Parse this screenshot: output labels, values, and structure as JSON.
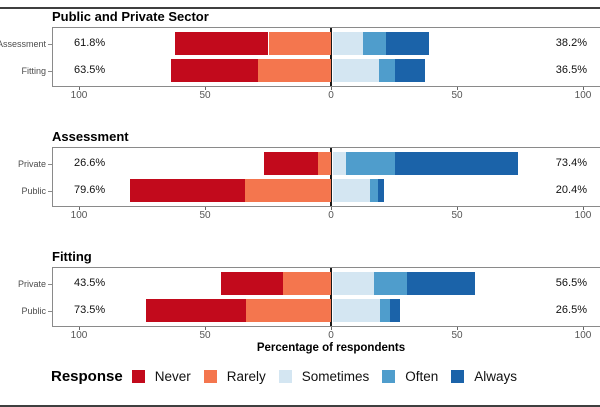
{
  "axis": {
    "xlabel": "Percentage of respondents",
    "tick_values": [
      -100,
      -50,
      0,
      50,
      100
    ],
    "tick_labels": [
      "100",
      "50",
      "0",
      "50",
      "100"
    ]
  },
  "legend": {
    "title": "Response",
    "items": [
      {
        "label": "Never",
        "color": "#c20a1c"
      },
      {
        "label": "Rarely",
        "color": "#f4764e"
      },
      {
        "label": "Sometimes",
        "color": "#d4e6f2"
      },
      {
        "label": "Often",
        "color": "#4f9dcc"
      },
      {
        "label": "Always",
        "color": "#1b63a9"
      }
    ]
  },
  "chart_data": [
    {
      "type": "bar",
      "variant": "diverging-stacked-likert",
      "title": "Public and Private Sector",
      "xlim": [
        -100,
        100
      ],
      "xlabel": "",
      "grid": false,
      "rows": [
        {
          "category": "Assessment",
          "left_label": "61.8%",
          "right_label": "38.2%",
          "negative_total": 61.8,
          "positive_total": 38.2,
          "segments": {
            "Never": 37.0,
            "Rarely": 24.8,
            "Sometimes": 11.9,
            "Often": 9.1,
            "Always": 17.2
          }
        },
        {
          "category": "Fitting",
          "left_label": "63.5%",
          "right_label": "36.5%",
          "negative_total": 63.5,
          "positive_total": 36.5,
          "segments": {
            "Never": 34.5,
            "Rarely": 29.0,
            "Sometimes": 18.3,
            "Often": 6.2,
            "Always": 12.0
          }
        }
      ]
    },
    {
      "type": "bar",
      "variant": "diverging-stacked-likert",
      "title": "Assessment",
      "xlim": [
        -100,
        100
      ],
      "xlabel": "",
      "grid": false,
      "rows": [
        {
          "category": "Private",
          "left_label": "26.6%",
          "right_label": "73.4%",
          "negative_total": 26.6,
          "positive_total": 73.4,
          "segments": {
            "Never": 21.5,
            "Rarely": 5.1,
            "Sometimes": 5.2,
            "Often": 19.6,
            "Always": 48.6
          }
        },
        {
          "category": "Public",
          "left_label": "79.6%",
          "right_label": "20.4%",
          "negative_total": 79.6,
          "positive_total": 20.4,
          "segments": {
            "Never": 45.6,
            "Rarely": 34.0,
            "Sometimes": 14.8,
            "Often": 3.2,
            "Always": 2.4
          }
        }
      ]
    },
    {
      "type": "bar",
      "variant": "diverging-stacked-likert",
      "title": "Fitting",
      "xlim": [
        -100,
        100
      ],
      "xlabel": "Percentage of respondents",
      "grid": false,
      "rows": [
        {
          "category": "Private",
          "left_label": "43.5%",
          "right_label": "56.5%",
          "negative_total": 43.5,
          "positive_total": 56.5,
          "segments": {
            "Never": 24.3,
            "Rarely": 19.2,
            "Sometimes": 16.3,
            "Often": 13.2,
            "Always": 27.0
          }
        },
        {
          "category": "Public",
          "left_label": "73.5%",
          "right_label": "26.5%",
          "negative_total": 73.5,
          "positive_total": 26.5,
          "segments": {
            "Never": 39.8,
            "Rarely": 33.7,
            "Sometimes": 18.6,
            "Often": 3.9,
            "Always": 4.0
          }
        }
      ]
    }
  ]
}
